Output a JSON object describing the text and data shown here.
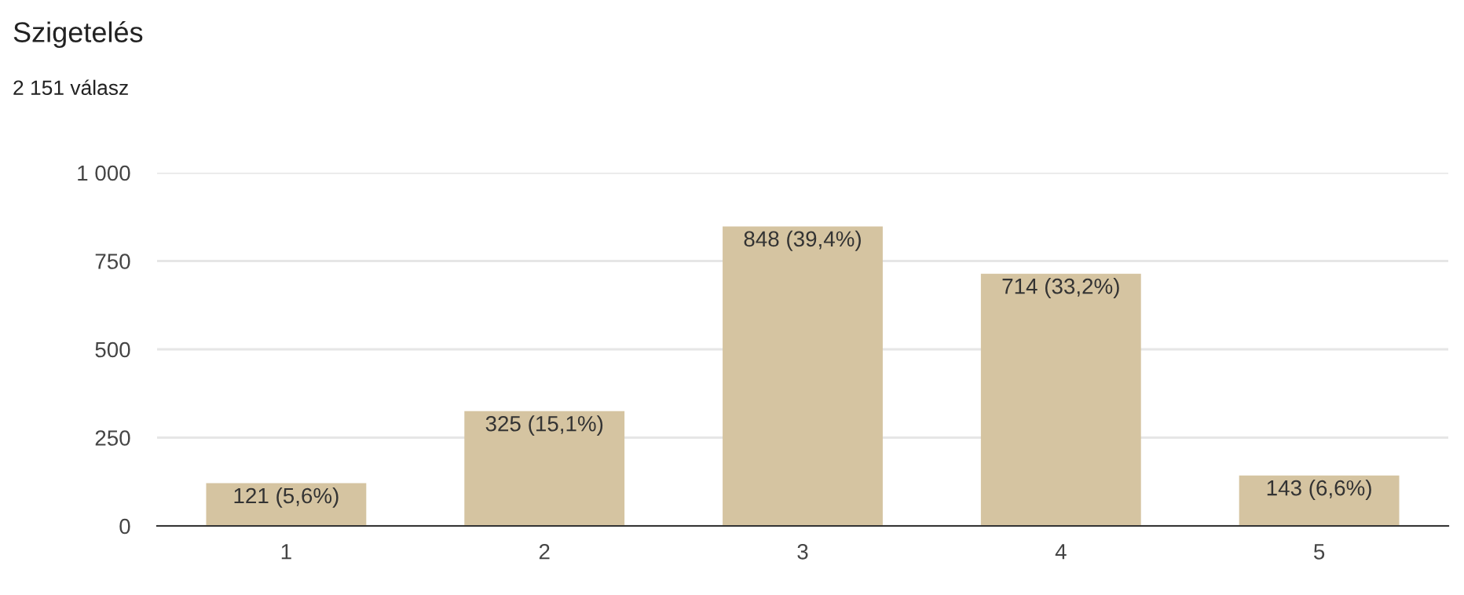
{
  "chart_data": {
    "type": "bar",
    "title": "Szigetelés",
    "subtitle": "2 151 válasz",
    "categories": [
      "1",
      "2",
      "3",
      "4",
      "5"
    ],
    "values": [
      121,
      325,
      848,
      714,
      143
    ],
    "value_labels": [
      "121 (5,6%)",
      "325 (15,1%)",
      "848 (39,4%)",
      "714 (33,2%)",
      "143 (6,6%)"
    ],
    "color": "#d5c4a1",
    "ylim": [
      0,
      1000
    ],
    "yticks": [
      0,
      250,
      500,
      750,
      {
        "value": 1000,
        "label": "1 000"
      }
    ],
    "grid": "y"
  }
}
